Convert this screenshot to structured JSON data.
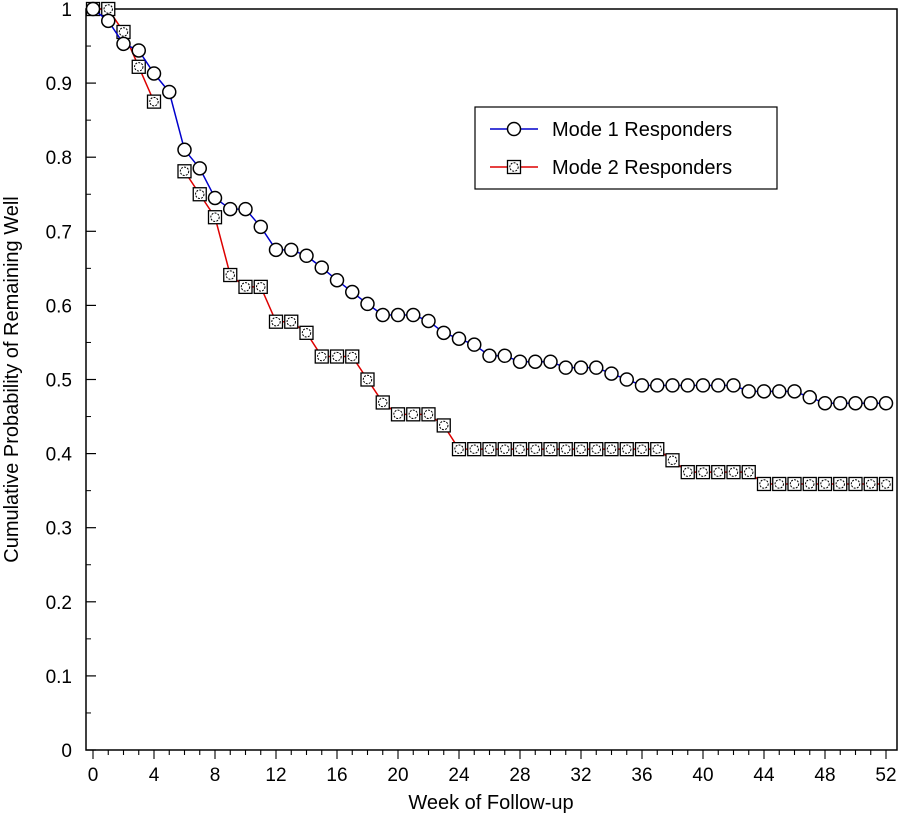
{
  "chart_data": {
    "type": "line",
    "title": "",
    "xlabel": "Week of Follow-up",
    "ylabel": "Cumulative Probability of Remaining Well",
    "xlim": [
      0,
      52
    ],
    "ylim": [
      0,
      1
    ],
    "xticks": [
      0,
      4,
      8,
      12,
      16,
      20,
      24,
      28,
      32,
      36,
      40,
      44,
      48,
      52
    ],
    "xtick_labels": [
      "0",
      "4",
      "8",
      "12",
      "16",
      "20",
      "24",
      "28",
      "32",
      "36",
      "40",
      "44",
      "48",
      "52"
    ],
    "yticks": [
      0,
      0.1,
      0.2,
      0.3,
      0.4,
      0.5,
      0.6,
      0.7,
      0.8,
      0.9,
      1
    ],
    "ytick_labels": [
      "0",
      "0.1",
      "0.2",
      "0.3",
      "0.4",
      "0.5",
      "0.6",
      "0.7",
      "0.8",
      "0.9",
      "1"
    ],
    "grid": false,
    "legend_position": "top-right",
    "series": [
      {
        "name": "Mode 1 Responders",
        "color": "#0000cc",
        "marker": "circle",
        "x": [
          0,
          1,
          2,
          3,
          4,
          5,
          6,
          7,
          8,
          9,
          10,
          11,
          12,
          13,
          14,
          15,
          16,
          17,
          18,
          19,
          20,
          21,
          22,
          23,
          24,
          25,
          26,
          27,
          28,
          29,
          30,
          31,
          32,
          33,
          34,
          35,
          36,
          37,
          38,
          39,
          40,
          41,
          42,
          43,
          44,
          45,
          46,
          47,
          48,
          49,
          50,
          51,
          52
        ],
        "values": [
          1.0,
          0.984,
          0.953,
          0.944,
          0.913,
          0.888,
          0.81,
          0.785,
          0.745,
          0.73,
          0.73,
          0.706,
          0.675,
          0.675,
          0.667,
          0.651,
          0.634,
          0.618,
          0.602,
          0.587,
          0.587,
          0.587,
          0.579,
          0.563,
          0.555,
          0.547,
          0.532,
          0.532,
          0.524,
          0.524,
          0.524,
          0.516,
          0.516,
          0.516,
          0.508,
          0.5,
          0.492,
          0.492,
          0.492,
          0.492,
          0.492,
          0.492,
          0.492,
          0.484,
          0.484,
          0.484,
          0.484,
          0.476,
          0.468,
          0.468,
          0.468,
          0.468,
          0.468
        ]
      },
      {
        "name": "Mode 2 Responders",
        "color": "#dd0000",
        "marker": "square",
        "segments": [
          {
            "x": [
              0,
              1,
              2,
              3,
              4
            ],
            "values": [
              1.0,
              1.0,
              0.969,
              0.922,
              0.875
            ]
          },
          {
            "x": [
              6,
              7,
              8,
              9,
              10,
              11,
              12,
              13,
              14,
              15,
              16,
              17,
              18,
              19,
              20,
              21,
              22,
              23,
              24,
              25,
              26,
              27,
              28,
              29,
              30,
              31,
              32,
              33,
              34,
              35,
              36,
              37,
              38,
              39,
              40,
              41,
              42,
              43,
              44,
              45,
              46,
              47,
              48,
              49,
              50,
              51,
              52
            ],
            "values": [
              0.781,
              0.75,
              0.719,
              0.641,
              0.625,
              0.625,
              0.578,
              0.578,
              0.563,
              0.531,
              0.531,
              0.531,
              0.5,
              0.469,
              0.453,
              0.453,
              0.453,
              0.438,
              0.406,
              0.406,
              0.406,
              0.406,
              0.406,
              0.406,
              0.406,
              0.406,
              0.406,
              0.406,
              0.406,
              0.406,
              0.406,
              0.406,
              0.391,
              0.375,
              0.375,
              0.375,
              0.375,
              0.375,
              0.359,
              0.359,
              0.359,
              0.359,
              0.359,
              0.359,
              0.359,
              0.359,
              0.359
            ]
          }
        ]
      }
    ]
  }
}
